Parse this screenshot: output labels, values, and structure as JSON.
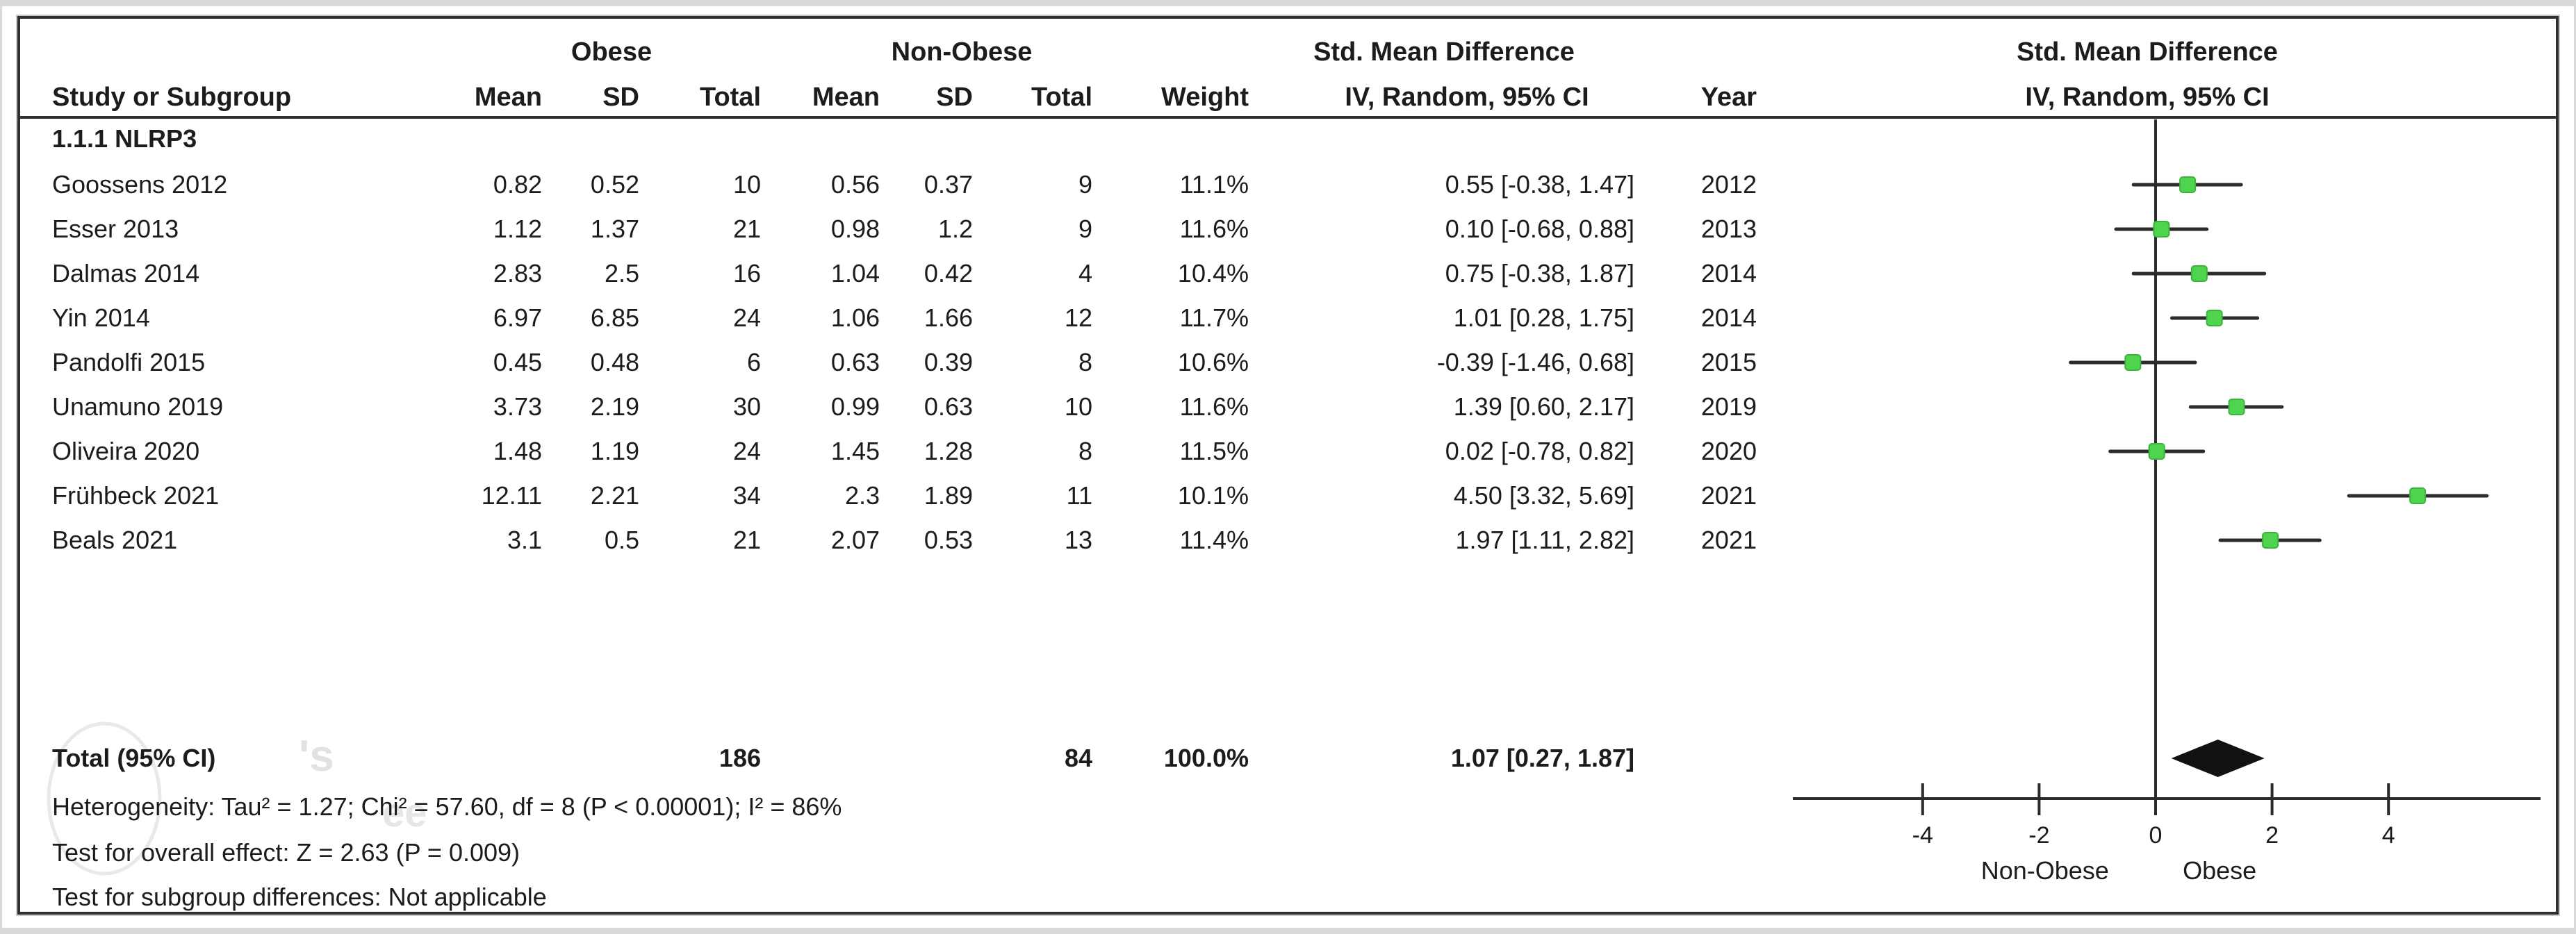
{
  "table": {
    "col_groups": {
      "obese": "Obese",
      "non_obese": "Non-Obese",
      "smd": "Std. Mean Difference",
      "smd_right": "Std. Mean Difference"
    },
    "headers": {
      "study": "Study or Subgroup",
      "mean1": "Mean",
      "sd1": "SD",
      "total1": "Total",
      "mean2": "Mean",
      "sd2": "SD",
      "total2": "Total",
      "weight": "Weight",
      "iv": "IV, Random, 95% CI",
      "year": "Year",
      "iv_right": "IV, Random, 95% CI"
    },
    "subgroup_label": "1.1.1 NLRP3",
    "total": {
      "label": "Total (95% CI)",
      "n1": "186",
      "n2": "84",
      "weight": "100.0%",
      "ci": "1.07 [0.27, 1.87]"
    },
    "footnotes": [
      "Heterogeneity: Tau² = 1.27; Chi² = 57.60, df = 8 (P < 0.00001); I² = 86%",
      "Test for overall effect: Z = 2.63 (P = 0.009)",
      "Test for subgroup differences: Not applicable"
    ]
  },
  "watermark": {
    "fragment1": "'s",
    "fragment2": "ee"
  },
  "chart_data": {
    "type": "scatter",
    "variant": "forest-plot",
    "title": "Std. Mean Difference, IV, Random, 95% CI",
    "marker_color": "#4ed44e",
    "line_color": "#2b2b2b",
    "x_axis": {
      "ticks": [
        -4,
        -2,
        0,
        2,
        4
      ],
      "drawn_range": [
        -6.2,
        6.6
      ],
      "label_left": "Non-Obese",
      "label_right": "Obese"
    },
    "studies": [
      {
        "name": "Goossens 2012",
        "mean1": "0.82",
        "sd1": "0.52",
        "n1": "10",
        "mean2": "0.56",
        "sd2": "0.37",
        "n2": "9",
        "weight": "11.1%",
        "ci": "0.55 [-0.38, 1.47]",
        "year": "2012",
        "est": 0.55,
        "lo": -0.38,
        "hi": 1.47
      },
      {
        "name": "Esser 2013",
        "mean1": "1.12",
        "sd1": "1.37",
        "n1": "21",
        "mean2": "0.98",
        "sd2": "1.2",
        "n2": "9",
        "weight": "11.6%",
        "ci": "0.10 [-0.68, 0.88]",
        "year": "2013",
        "est": 0.1,
        "lo": -0.68,
        "hi": 0.88
      },
      {
        "name": "Dalmas 2014",
        "mean1": "2.83",
        "sd1": "2.5",
        "n1": "16",
        "mean2": "1.04",
        "sd2": "0.42",
        "n2": "4",
        "weight": "10.4%",
        "ci": "0.75 [-0.38, 1.87]",
        "year": "2014",
        "est": 0.75,
        "lo": -0.38,
        "hi": 1.87
      },
      {
        "name": "Yin 2014",
        "mean1": "6.97",
        "sd1": "6.85",
        "n1": "24",
        "mean2": "1.06",
        "sd2": "1.66",
        "n2": "12",
        "weight": "11.7%",
        "ci": "1.01 [0.28, 1.75]",
        "year": "2014",
        "est": 1.01,
        "lo": 0.28,
        "hi": 1.75
      },
      {
        "name": "Pandolfi 2015",
        "mean1": "0.45",
        "sd1": "0.48",
        "n1": "6",
        "mean2": "0.63",
        "sd2": "0.39",
        "n2": "8",
        "weight": "10.6%",
        "ci": "-0.39 [-1.46, 0.68]",
        "year": "2015",
        "est": -0.39,
        "lo": -1.46,
        "hi": 0.68
      },
      {
        "name": "Unamuno 2019",
        "mean1": "3.73",
        "sd1": "2.19",
        "n1": "30",
        "mean2": "0.99",
        "sd2": "0.63",
        "n2": "10",
        "weight": "11.6%",
        "ci": "1.39 [0.60, 2.17]",
        "year": "2019",
        "est": 1.39,
        "lo": 0.6,
        "hi": 2.17
      },
      {
        "name": "Oliveira 2020",
        "mean1": "1.48",
        "sd1": "1.19",
        "n1": "24",
        "mean2": "1.45",
        "sd2": "1.28",
        "n2": "8",
        "weight": "11.5%",
        "ci": "0.02 [-0.78, 0.82]",
        "year": "2020",
        "est": 0.02,
        "lo": -0.78,
        "hi": 0.82
      },
      {
        "name": "Frühbeck 2021",
        "mean1": "12.11",
        "sd1": "2.21",
        "n1": "34",
        "mean2": "2.3",
        "sd2": "1.89",
        "n2": "11",
        "weight": "10.1%",
        "ci": "4.50 [3.32, 5.69]",
        "year": "2021",
        "est": 4.5,
        "lo": 3.32,
        "hi": 5.69
      },
      {
        "name": "Beals 2021",
        "mean1": "3.1",
        "sd1": "0.5",
        "n1": "21",
        "mean2": "2.07",
        "sd2": "0.53",
        "n2": "13",
        "weight": "11.4%",
        "ci": "1.97 [1.11, 2.82]",
        "year": "2021",
        "est": 1.97,
        "lo": 1.11,
        "hi": 2.82
      }
    ],
    "overall": {
      "est": 1.07,
      "lo": 0.27,
      "hi": 1.87
    }
  }
}
